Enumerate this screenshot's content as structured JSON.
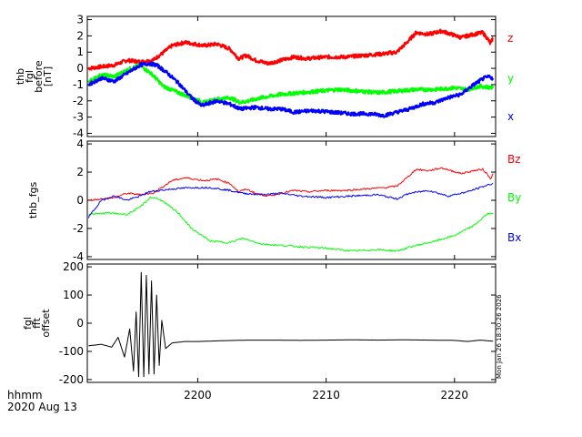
{
  "chart_data": [
    {
      "type": "line",
      "ylabel_lines": [
        "thb",
        "fgl",
        "before",
        "[nT]"
      ],
      "ylim": [
        -4.2,
        3.2
      ],
      "yticks": [
        3,
        2,
        1,
        0,
        -1,
        -2,
        -3,
        -4
      ],
      "series": [
        {
          "name": "z",
          "color": "#ff0000",
          "x": [
            2191.5,
            2193.5,
            2194.5,
            2195.5,
            2196.5,
            2197.2,
            2198,
            2199,
            2200.5,
            2201.5,
            2202.5,
            2203.2,
            2203.8,
            2204.5,
            2205.5,
            2206.5,
            2207.5,
            2208.5,
            2210,
            2211.5,
            2213,
            2214.5,
            2215.5,
            2216.3,
            2217,
            2218,
            2219,
            2220.5,
            2221.5,
            2222.2,
            2222.6,
            2222.8,
            2223
          ],
          "y": [
            0,
            0.2,
            0.5,
            0.4,
            0.5,
            0.9,
            1.4,
            1.6,
            1.4,
            1.5,
            1.2,
            0.6,
            0.8,
            0.5,
            0.3,
            0.5,
            0.7,
            0.6,
            0.7,
            0.7,
            0.8,
            0.9,
            1.0,
            1.6,
            2.2,
            2.1,
            2.3,
            1.9,
            2.1,
            2.2,
            1.8,
            1.5,
            1.9
          ]
        },
        {
          "name": "y",
          "color": "#00ff00",
          "x": [
            2191.5,
            2192.5,
            2193.5,
            2194.5,
            2195.5,
            2196.5,
            2197.3,
            2198.5,
            2199.5,
            2200.5,
            2201.5,
            2202.5,
            2203.3,
            2204,
            2205,
            2206.5,
            2208,
            2209.5,
            2211,
            2212.5,
            2214,
            2215.5,
            2217,
            2218.5,
            2220,
            2221,
            2222,
            2223
          ],
          "y": [
            -0.8,
            -0.4,
            -0.5,
            -0.1,
            0.2,
            -0.4,
            -1.1,
            -1.5,
            -1.8,
            -2.1,
            -1.9,
            -1.8,
            -2.1,
            -2.0,
            -1.8,
            -1.6,
            -1.5,
            -1.4,
            -1.3,
            -1.4,
            -1.5,
            -1.4,
            -1.3,
            -1.3,
            -1.2,
            -1.3,
            -1.1,
            -1.2
          ]
        },
        {
          "name": "x",
          "color": "#0000ff",
          "x": [
            2191.5,
            2192.5,
            2193.5,
            2194.5,
            2195.5,
            2196.2,
            2196.8,
            2197.5,
            2198.5,
            2199.5,
            2200.3,
            2201.5,
            2202.5,
            2203.3,
            2204.5,
            2205.5,
            2206.5,
            2207.5,
            2209,
            2210.5,
            2212,
            2213.5,
            2214.5,
            2215.5,
            2216.5,
            2217.5,
            2218.5,
            2219.5,
            2220.5,
            2221.5,
            2222.3,
            2222.8,
            2223
          ],
          "y": [
            -1.0,
            -0.6,
            -0.8,
            -0.3,
            0.2,
            0.3,
            0.2,
            -0.2,
            -0.9,
            -1.8,
            -2.3,
            -2.0,
            -2.2,
            -2.5,
            -2.4,
            -2.5,
            -2.5,
            -2.7,
            -2.6,
            -2.7,
            -2.8,
            -2.8,
            -2.9,
            -2.7,
            -2.5,
            -2.2,
            -2.1,
            -1.8,
            -1.6,
            -1.0,
            -0.6,
            -0.5,
            -0.7
          ]
        }
      ]
    },
    {
      "type": "line",
      "ylabel": "thb_fgs",
      "ylim": [
        -4.2,
        4.2
      ],
      "yticks": [
        4,
        2,
        0,
        -2,
        -4
      ],
      "series": [
        {
          "name": "Bz",
          "color": "#ff0000",
          "x": [
            2191.5,
            2193.5,
            2194.5,
            2195.5,
            2196.5,
            2197.2,
            2198,
            2199,
            2200.5,
            2201.5,
            2202.5,
            2203.2,
            2203.8,
            2204.5,
            2205.5,
            2206.5,
            2207.5,
            2208.5,
            2210,
            2211.5,
            2213,
            2214.5,
            2215.5,
            2216.3,
            2217,
            2218,
            2219,
            2220.5,
            2221.5,
            2222.2,
            2222.6,
            2222.8,
            2223
          ],
          "y": [
            0,
            0.2,
            0.5,
            0.4,
            0.5,
            0.9,
            1.4,
            1.6,
            1.4,
            1.5,
            1.2,
            0.6,
            0.8,
            0.5,
            0.3,
            0.5,
            0.7,
            0.6,
            0.7,
            0.7,
            0.8,
            0.9,
            1.0,
            1.6,
            2.2,
            2.1,
            2.3,
            1.9,
            2.1,
            2.2,
            1.8,
            1.5,
            1.9
          ]
        },
        {
          "name": "By",
          "color": "#00ff00",
          "x": [
            2191.5,
            2193,
            2194.5,
            2195.5,
            2196.3,
            2197,
            2198.5,
            2199.5,
            2201,
            2202.5,
            2203.5,
            2205,
            2206.5,
            2208,
            2210,
            2212,
            2214,
            2215.5,
            2217,
            2218.5,
            2220,
            2221.5,
            2222.5,
            2223
          ],
          "y": [
            -1.0,
            -0.9,
            -1.0,
            -0.5,
            0.2,
            0.1,
            -0.9,
            -2.0,
            -2.9,
            -3.0,
            -2.7,
            -3.1,
            -3.2,
            -3.3,
            -3.4,
            -3.6,
            -3.5,
            -3.6,
            -3.2,
            -2.9,
            -2.5,
            -1.8,
            -1.0,
            -0.9
          ]
        },
        {
          "name": "Bx",
          "color": "#0000ff",
          "x": [
            2191.5,
            2192.5,
            2193.5,
            2194.5,
            2195.5,
            2196.2,
            2197,
            2198,
            2199.5,
            2201,
            2202.5,
            2203.5,
            2205,
            2206.5,
            2208,
            2210,
            2212,
            2214,
            2215.5,
            2216.5,
            2218,
            2219.5,
            2221,
            2222.3,
            2223
          ],
          "y": [
            -1.2,
            0,
            0.3,
            0,
            0.3,
            0.6,
            0.7,
            0.8,
            0.9,
            0.9,
            0.7,
            0.5,
            0.4,
            0.5,
            0.3,
            0.2,
            0.3,
            0.4,
            0.1,
            0.5,
            0.7,
            0.3,
            0.6,
            1.0,
            1.2
          ]
        }
      ]
    },
    {
      "type": "line",
      "ylabel_lines": [
        "fgl",
        "fft",
        "offset"
      ],
      "ylim": [
        -210,
        210
      ],
      "yticks": [
        200,
        100,
        0,
        -100,
        -200
      ],
      "series": [
        {
          "name": "",
          "color": "#000000",
          "x": [
            2191.5,
            2192.5,
            2193.3,
            2193.8,
            2194.3,
            2194.7,
            2195,
            2195.2,
            2195.4,
            2195.6,
            2195.8,
            2196,
            2196.2,
            2196.4,
            2196.6,
            2196.8,
            2197,
            2197.2,
            2197.5,
            2198,
            2199,
            2200,
            2202,
            2204,
            2206,
            2208,
            2210,
            2212,
            2214,
            2216,
            2218,
            2220,
            2221,
            2222,
            2223
          ],
          "y": [
            -80,
            -75,
            -85,
            -50,
            -120,
            -20,
            -170,
            40,
            -190,
            180,
            -190,
            170,
            -180,
            150,
            -180,
            100,
            -150,
            10,
            -90,
            -70,
            -65,
            -65,
            -62,
            -60,
            -60,
            -61,
            -60,
            -59,
            -60,
            -59,
            -60,
            -61,
            -65,
            -60,
            -64
          ]
        }
      ]
    }
  ],
  "xticks": [
    2200,
    2210,
    2220
  ],
  "xlim": [
    2191.4,
    2223.2
  ],
  "footer": {
    "line1": "hhmm",
    "line2": "2020 Aug 13"
  },
  "timestamp": "Mon Jan 26 18:30:26 2026"
}
